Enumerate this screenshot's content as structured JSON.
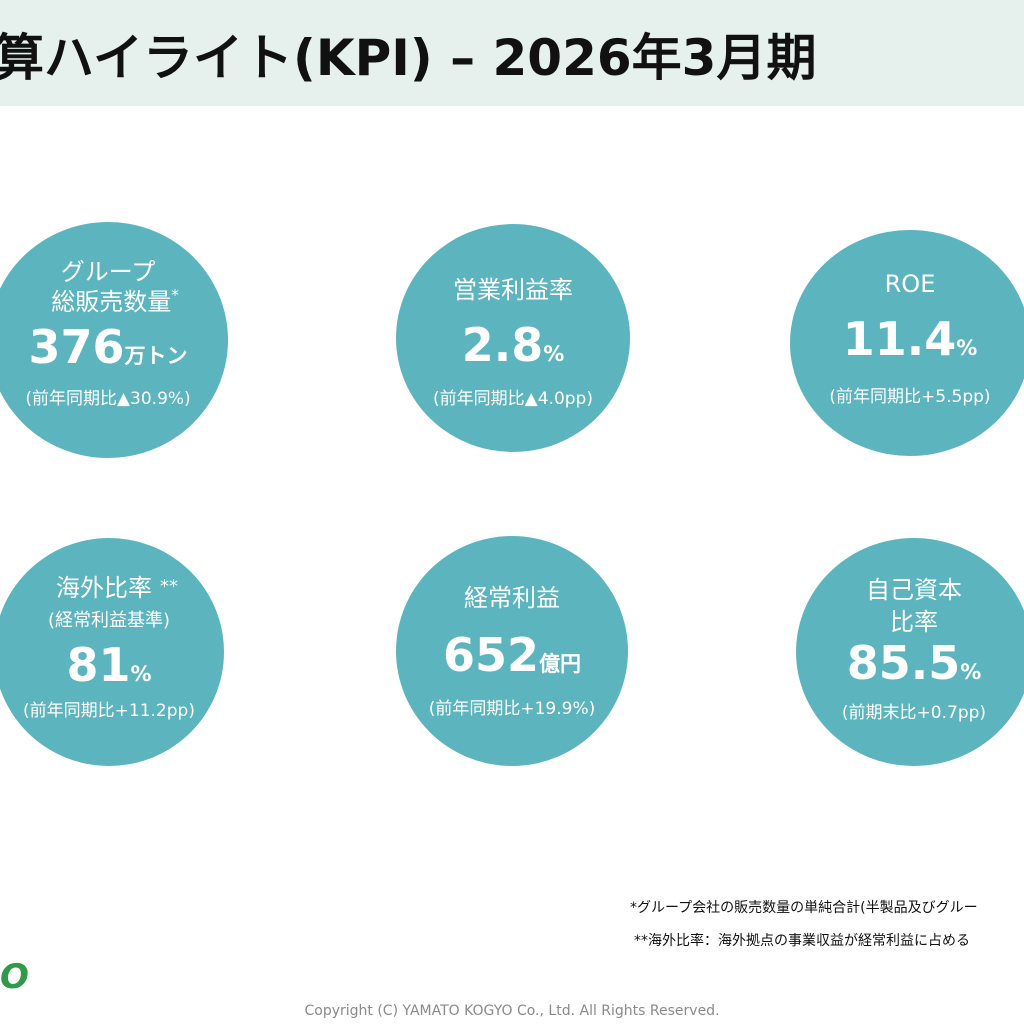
{
  "header": {
    "title": "算ハイライト(KPI) – 2026年3月期"
  },
  "kpis": [
    {
      "label_1": "グループ",
      "label_2": "総販売数量",
      "label_mark": "*",
      "value": "376",
      "unit": "万トン",
      "change": "(前年同期比▲30.9%)"
    },
    {
      "label_1": "営業利益率",
      "value": "2.8",
      "unit": "%",
      "change": "(前年同期比▲4.0pp)"
    },
    {
      "label_1": "ROE",
      "value": "11.4",
      "unit": "%",
      "change": "(前年同期比+5.5pp)"
    },
    {
      "label_1": "海外比率",
      "label_mark": "**",
      "label_2": "(経常利益基準)",
      "value": "81",
      "unit": "%",
      "change": "(前年同期比+11.2pp)"
    },
    {
      "label_1": "経常利益",
      "value": "652",
      "unit": "億円",
      "change": "(前年同期比+19.9%)"
    },
    {
      "label_1": "自己資本",
      "label_2": "比率",
      "value": "85.5",
      "unit": "%",
      "change": "(前期末比+0.7pp)"
    }
  ],
  "footnotes": {
    "note_1": "*グループ会社の販売数量の単純合計(半製品及びグルー",
    "note_2": "**海外比率：海外拠点の事業収益が経常利益に占める"
  },
  "logo": {
    "text": "O"
  },
  "footer": {
    "copyright": "Copyright (C) YAMATO KOGYO Co., Ltd. All Rights Reserved."
  },
  "colors": {
    "circle": "#5cb5be",
    "header_band": "#e6f1ee",
    "logo": "#2f9a48"
  }
}
